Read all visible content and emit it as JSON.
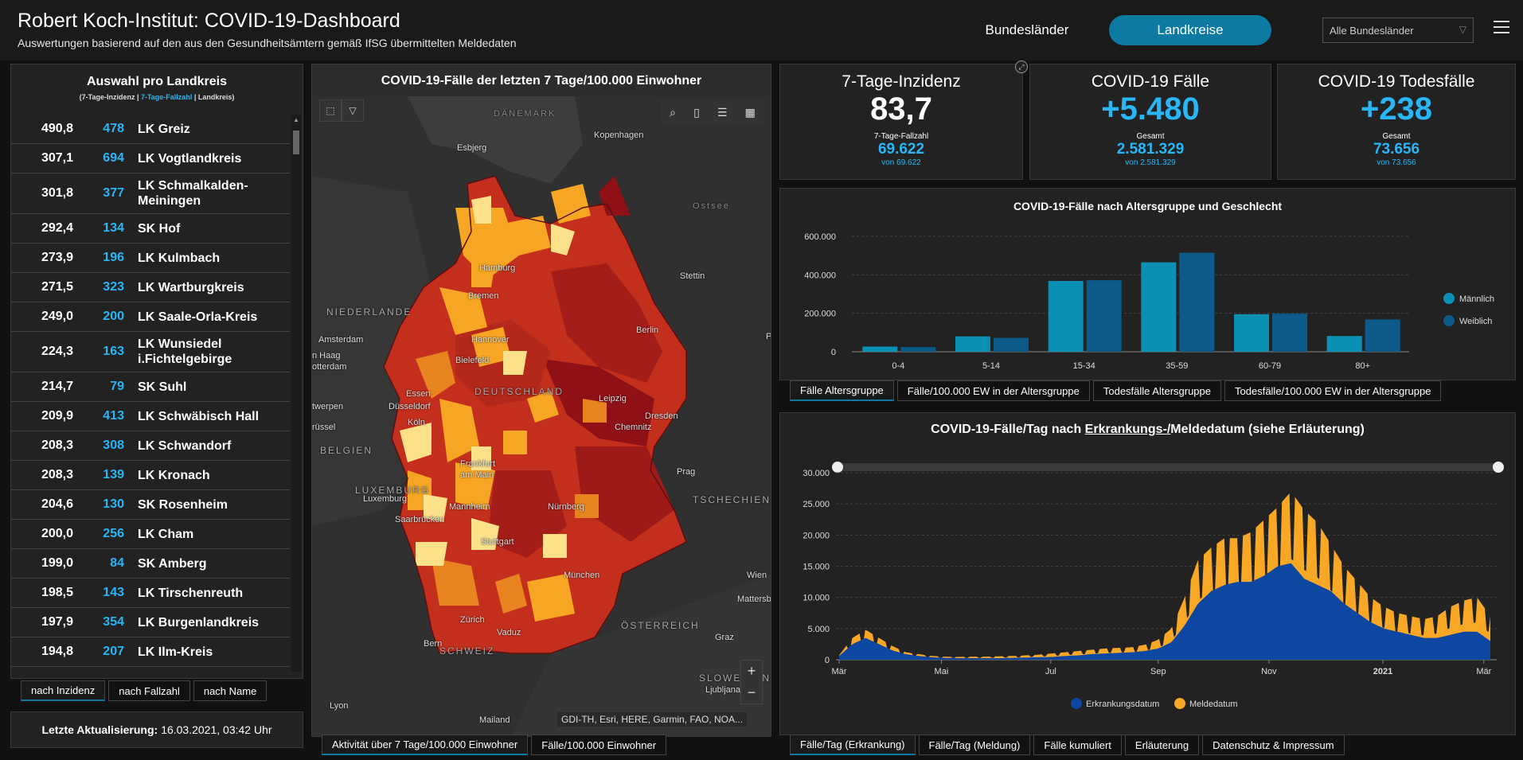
{
  "header": {
    "title": "Robert Koch-Institut: COVID-19-Dashboard",
    "subtitle": "Auswertungen basierend auf den aus den Gesundheitsämtern gemäß IfSG übermittelten Meldedaten",
    "nav_bundeslaender": "Bundesländer",
    "nav_landkreise": "Landkreise",
    "state_select": "Alle Bundesländer"
  },
  "list": {
    "title": "Auswahl pro Landkreis",
    "legend_open": "(7-Tage-Inzidenz | ",
    "legend_blue": "7-Tage-Fallzahl",
    "legend_close": " | Landkreis)",
    "rows": [
      {
        "inzidenz": "490,8",
        "fallzahl": "478",
        "name": "LK Greiz"
      },
      {
        "inzidenz": "307,1",
        "fallzahl": "694",
        "name": "LK Vogtlandkreis"
      },
      {
        "inzidenz": "301,8",
        "fallzahl": "377",
        "name": "LK Schmalkalden-Meiningen"
      },
      {
        "inzidenz": "292,4",
        "fallzahl": "134",
        "name": "SK Hof"
      },
      {
        "inzidenz": "273,9",
        "fallzahl": "196",
        "name": "LK Kulmbach"
      },
      {
        "inzidenz": "271,5",
        "fallzahl": "323",
        "name": "LK Wartburgkreis"
      },
      {
        "inzidenz": "249,0",
        "fallzahl": "200",
        "name": "LK Saale-Orla-Kreis"
      },
      {
        "inzidenz": "224,3",
        "fallzahl": "163",
        "name": "LK Wunsiedel i.Fichtelgebirge"
      },
      {
        "inzidenz": "214,7",
        "fallzahl": "79",
        "name": "SK Suhl"
      },
      {
        "inzidenz": "209,9",
        "fallzahl": "413",
        "name": "LK Schwäbisch Hall"
      },
      {
        "inzidenz": "208,3",
        "fallzahl": "308",
        "name": "LK Schwandorf"
      },
      {
        "inzidenz": "208,3",
        "fallzahl": "139",
        "name": "LK Kronach"
      },
      {
        "inzidenz": "204,6",
        "fallzahl": "130",
        "name": "SK Rosenheim"
      },
      {
        "inzidenz": "200,0",
        "fallzahl": "256",
        "name": "LK Cham"
      },
      {
        "inzidenz": "199,0",
        "fallzahl": "84",
        "name": "SK Amberg"
      },
      {
        "inzidenz": "198,5",
        "fallzahl": "143",
        "name": "LK Tirschenreuth"
      },
      {
        "inzidenz": "197,9",
        "fallzahl": "354",
        "name": "LK Burgenlandkreis"
      },
      {
        "inzidenz": "194,8",
        "fallzahl": "207",
        "name": "LK Ilm-Kreis"
      }
    ],
    "sort_tabs": [
      "nach Inzidenz",
      "nach Fallzahl",
      "nach Name"
    ]
  },
  "update": {
    "label": "Letzte Aktualisierung:",
    "value": "16.03.2021, 03:42 Uhr"
  },
  "map": {
    "title": "COVID-19-Fälle der letzten 7 Tage/100.000 Einwohner",
    "attribution": "GDI-TH, Esri, HERE, Garmin, FAO, NOA...",
    "labels": {
      "daenemark": "DÄNEMARK",
      "ostsee": "Ostsee",
      "niederlande": "NIEDERLANDE",
      "belgien": "BELGIEN",
      "luxemburg": "LUXEMBURG",
      "deutschland": "DEUTSCHLAND",
      "tschechien": "TSCHECHIEN",
      "oesterreich": "ÖSTERREICH",
      "schweiz": "SCHWEIZ",
      "slowenien": "SLOWENIEN",
      "kopenhagen": "Kopenhagen",
      "esbjerg": "Esbjerg",
      "hamburg": "Hamburg",
      "bremen": "Bremen",
      "stettin": "Stettin",
      "amsterdam": "Amsterdam",
      "den_haag": "n Haag",
      "rotterdam": "otterdam",
      "hannover": "Hannover",
      "berlin": "Berlin",
      "bielefeld": "Bielefeld",
      "essen": "Essen",
      "duesseldorf": "Düsseldorf",
      "antwerpen": "twerpen",
      "koeln": "Köln",
      "leipzig": "Leipzig",
      "dresden": "Dresden",
      "chemnitz": "Chemnitz",
      "bruessel": "rüssel",
      "frankfurt1": "Frankfurt",
      "frankfurt2": "am Main",
      "luxemburg_city": "Luxemburg",
      "prag": "Prag",
      "mannheim": "Mannheim",
      "saarbruecken": "Saarbrücken",
      "nuernberg": "Nürnberg",
      "stuttgart": "Stuttgart",
      "muenchen": "München",
      "wien": "Wien",
      "mattersburg": "Mattersbu",
      "zuerich": "Zürich",
      "vaduz": "Vaduz",
      "bern": "Bern",
      "graz": "Graz",
      "ljubljana": "Ljubljana",
      "lyon": "Lyon",
      "mailand": "Mailand",
      "p_edge": "P"
    },
    "tabs": [
      "Aktivität über 7 Tage/100.000 Einwohner",
      "Fälle/100.000 Einwohner"
    ]
  },
  "kpi": {
    "inzidenz": {
      "title": "7-Tage-Inzidenz",
      "value": "83,7",
      "sub_label": "7-Tage-Fallzahl",
      "sub_value": "69.622",
      "sub_of": "von 69.622"
    },
    "faelle": {
      "title": "COVID-19 Fälle",
      "value": "+5.480",
      "sub_label": "Gesamt",
      "sub_value": "2.581.329",
      "sub_of": "von 2.581.329"
    },
    "todesfaelle": {
      "title": "COVID-19 Todesfälle",
      "value": "+238",
      "sub_label": "Gesamt",
      "sub_value": "73.656",
      "sub_of": "von 73.656"
    }
  },
  "chart_data": [
    {
      "type": "bar",
      "title": "COVID-19-Fälle nach Altersgruppe und Geschlecht",
      "categories": [
        "0-4",
        "5-14",
        "15-34",
        "35-59",
        "60-79",
        "80+"
      ],
      "series": [
        {
          "name": "Männlich",
          "values": [
            27000,
            80000,
            368000,
            465000,
            195000,
            82000
          ],
          "color": "#0a8fb5"
        },
        {
          "name": "Weiblich",
          "values": [
            24000,
            72000,
            372000,
            515000,
            198000,
            168000
          ],
          "color": "#0b5a8a"
        }
      ],
      "ylim": [
        0,
        600000
      ],
      "yticks": [
        "0",
        "200.000",
        "400.000",
        "600.000"
      ],
      "legend": "right",
      "grid": true,
      "tabs": [
        "Fälle Altersgruppe",
        "Fälle/100.000 EW in der Altersgruppe",
        "Todesfälle Altersgruppe",
        "Todesfälle/100.000 EW in der Altersgruppe"
      ]
    },
    {
      "type": "area",
      "title_pre": "COVID-19-Fälle/Tag nach ",
      "title_ul": "Erkrankungs-/",
      "title_post": "Meldedatum (siehe Erläuterung)",
      "x_ticks": [
        "Mär",
        "Mai",
        "Jul",
        "Sep",
        "Nov",
        "2021",
        "Mär"
      ],
      "ylim": [
        0,
        30000
      ],
      "yticks": [
        "0",
        "5.000",
        "10.000",
        "15.000",
        "20.000",
        "25.000",
        "30.000"
      ],
      "series": [
        {
          "name": "Erkrankungsdatum",
          "color": "#0d47a1",
          "weekly_values": [
            600,
            2500,
            3500,
            2500,
            1500,
            900,
            600,
            400,
            300,
            250,
            250,
            250,
            250,
            300,
            350,
            400,
            450,
            600,
            700,
            900,
            1000,
            1100,
            1200,
            1400,
            1800,
            2800,
            5500,
            9000,
            11000,
            12000,
            12500,
            12500,
            13500,
            15000,
            15500,
            13000,
            12000,
            11000,
            9000,
            7500,
            6000,
            5000,
            4500,
            4000,
            3500,
            3500,
            4000,
            4500,
            4500,
            3000
          ]
        },
        {
          "name": "Meldedatum",
          "color": "#f9a825",
          "weekly_values": [
            700,
            3500,
            4800,
            3500,
            2200,
            1200,
            900,
            600,
            500,
            450,
            500,
            500,
            550,
            600,
            700,
            800,
            1000,
            1200,
            1400,
            1600,
            1800,
            1900,
            2000,
            2400,
            3200,
            5000,
            10000,
            16000,
            18000,
            19500,
            19500,
            20500,
            22500,
            24500,
            27000,
            24000,
            22000,
            18500,
            15000,
            12500,
            10000,
            8500,
            7500,
            7000,
            6500,
            7000,
            8500,
            9500,
            10000,
            7000
          ]
        }
      ],
      "legend": "bottom",
      "grid": true,
      "tabs": [
        "Fälle/Tag (Erkrankung)",
        "Fälle/Tag (Meldung)",
        "Fälle kumuliert",
        "Erläuterung",
        "Datenschutz & Impressum"
      ]
    }
  ],
  "colors": {
    "accent": "#0c7aa3",
    "kpi_blue": "#29b6f6",
    "map_low": "#fde08a",
    "map_mid": "#f6a623",
    "map_high": "#d63b1f",
    "map_very_high": "#8f1116"
  }
}
